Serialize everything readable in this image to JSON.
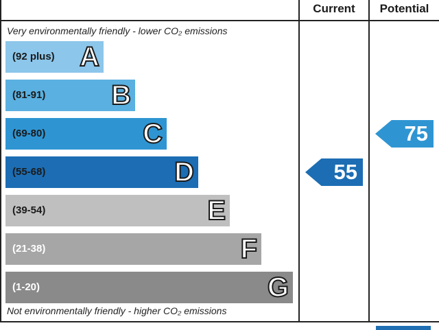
{
  "header": {
    "current_label": "Current",
    "potential_label": "Potential"
  },
  "notes": {
    "top": "Very environmentally friendly - lower CO₂ emissions",
    "bottom": "Not environmentally friendly - higher CO₂ emissions"
  },
  "chart_data": {
    "type": "bar",
    "categories": [
      "A",
      "B",
      "C",
      "D",
      "E",
      "F",
      "G"
    ],
    "ranges": [
      "(92 plus)",
      "(81-91)",
      "(69-80)",
      "(55-68)",
      "(39-54)",
      "(21-38)",
      "(1-20)"
    ],
    "colors": [
      "#8cc6ea",
      "#5ab0e0",
      "#2f95d2",
      "#1c6db3",
      "#bfbfbf",
      "#a6a6a6",
      "#8a8a8a"
    ],
    "range_text_colors": [
      "#1a1a1a",
      "#1a1a1a",
      "#1a1a1a",
      "#1a1a1a",
      "#1a1a1a",
      "#ffffff",
      "#ffffff"
    ],
    "current": {
      "value": 55,
      "band": "D",
      "color": "#1c6db3"
    },
    "potential": {
      "value": 75,
      "band": "C",
      "color": "#2f95d2"
    }
  }
}
